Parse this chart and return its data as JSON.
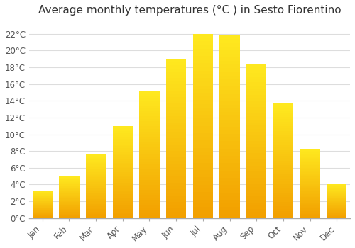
{
  "title": "Average monthly temperatures (°C ) in Sesto Fiorentino",
  "months": [
    "Jan",
    "Feb",
    "Mar",
    "Apr",
    "May",
    "Jun",
    "Jul",
    "Aug",
    "Sep",
    "Oct",
    "Nov",
    "Dec"
  ],
  "temperatures": [
    3.3,
    5.0,
    7.6,
    11.0,
    15.2,
    19.0,
    22.0,
    21.8,
    18.4,
    13.7,
    8.3,
    4.1
  ],
  "bar_color_light": "#FFCC44",
  "bar_color_dark": "#FFA500",
  "background_color": "#FFFFFF",
  "plot_bg_color": "#FFFFFF",
  "grid_color": "#DDDDDD",
  "yticks": [
    0,
    2,
    4,
    6,
    8,
    10,
    12,
    14,
    16,
    18,
    20,
    22
  ],
  "ylim": [
    0,
    23.5
  ],
  "title_fontsize": 11,
  "tick_fontsize": 8.5,
  "bar_width": 0.75
}
